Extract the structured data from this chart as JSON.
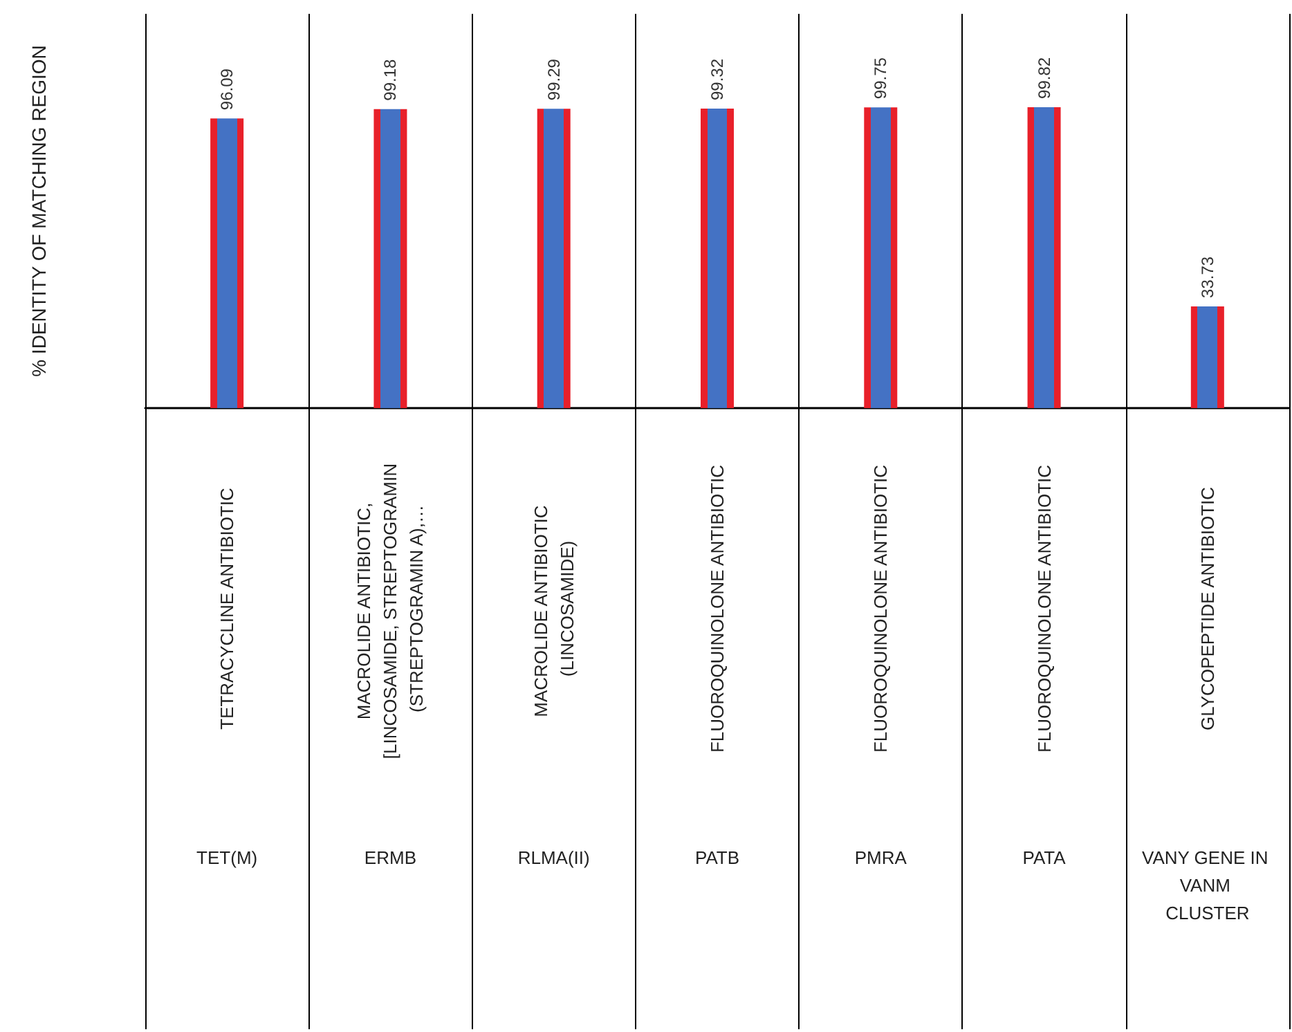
{
  "chart_data": {
    "type": "bar",
    "ylabel": "% IDENTITY OF MATCHING REGION",
    "categories": [
      "TET(M)",
      "ERMB",
      "RLMA(II)",
      "PATB",
      "PMRA",
      "PATA",
      "VANY GENE IN VANM CLUSTER"
    ],
    "series": [
      {
        "color": "#4472c4",
        "values": [
          96.09,
          99.18,
          99.29,
          99.32,
          99.75,
          99.82,
          33.73
        ]
      }
    ],
    "data_labels": true,
    "grid": "x",
    "annotations": [
      "TETRACYCLINE ANTIBIOTIC",
      "MACROLIDE ANTIBIOTIC, [LINCOSAMIDE, STREPTOGRAMIN (STREPTOGRAMIN A),…",
      "MACROLIDE ANTIBIOTIC (LINCOSAMIDE)",
      "FLUOROQUINOLONE ANTIBIOTIC",
      "FLUOROQUINOLONE ANTIBIOTIC",
      "FLUOROQUINOLONE ANTIBIOTIC",
      "GLYCOPEPTIDE ANTIBIOTIC"
    ]
  }
}
